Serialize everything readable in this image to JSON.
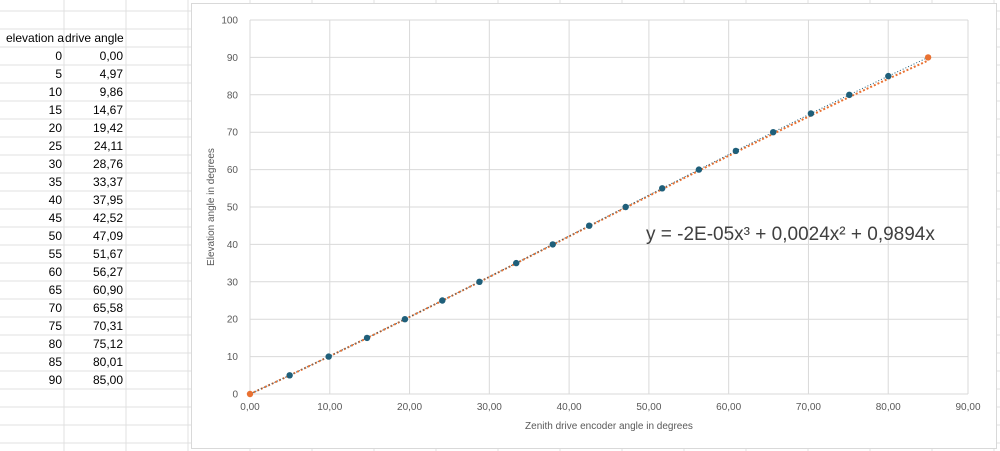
{
  "sheet": {
    "header": {
      "elevation": "elevation a",
      "drive": "drive angle"
    },
    "rows": [
      {
        "elevation": "0",
        "drive": "0,00"
      },
      {
        "elevation": "5",
        "drive": "4,97"
      },
      {
        "elevation": "10",
        "drive": "9,86"
      },
      {
        "elevation": "15",
        "drive": "14,67"
      },
      {
        "elevation": "20",
        "drive": "19,42"
      },
      {
        "elevation": "25",
        "drive": "24,11"
      },
      {
        "elevation": "30",
        "drive": "28,76"
      },
      {
        "elevation": "35",
        "drive": "33,37"
      },
      {
        "elevation": "40",
        "drive": "37,95"
      },
      {
        "elevation": "45",
        "drive": "42,52"
      },
      {
        "elevation": "50",
        "drive": "47,09"
      },
      {
        "elevation": "55",
        "drive": "51,67"
      },
      {
        "elevation": "60",
        "drive": "56,27"
      },
      {
        "elevation": "65",
        "drive": "60,90"
      },
      {
        "elevation": "70",
        "drive": "65,58"
      },
      {
        "elevation": "75",
        "drive": "70,31"
      },
      {
        "elevation": "80",
        "drive": "75,12"
      },
      {
        "elevation": "85",
        "drive": "80,01"
      },
      {
        "elevation": "90",
        "drive": "85,00"
      }
    ]
  },
  "chart_data": {
    "type": "scatter",
    "title": "",
    "xlabel": "Zenith drive encoder angle in degrees",
    "ylabel": "Elevation angle in degrees",
    "xlim": [
      0,
      90
    ],
    "ylim": [
      0,
      100
    ],
    "x_ticks": [
      "0,00",
      "10,00",
      "20,00",
      "30,00",
      "40,00",
      "50,00",
      "60,00",
      "70,00",
      "80,00",
      "90,00"
    ],
    "y_ticks": [
      "0",
      "10",
      "20",
      "30",
      "40",
      "50",
      "60",
      "70",
      "80",
      "90",
      "100"
    ],
    "grid": true,
    "series": [
      {
        "color": "#1f5f7a",
        "x": [
          4.97,
          9.86,
          14.67,
          19.42,
          24.11,
          28.76,
          33.37,
          37.95,
          42.52,
          47.09,
          51.67,
          56.27,
          60.9,
          65.58,
          70.31,
          75.12,
          80.01
        ],
        "y": [
          5,
          10,
          15,
          20,
          25,
          30,
          35,
          40,
          45,
          50,
          55,
          60,
          65,
          70,
          75,
          80,
          85
        ]
      },
      {
        "color": "#e97132",
        "x": [
          0.0,
          85.0
        ],
        "y": [
          0,
          90
        ]
      }
    ],
    "trendline": {
      "equation": "y = -2E-05x³ + 0,0024x² + 0,9894x",
      "coefficients": {
        "a3": -2e-05,
        "a2": 0.0024,
        "a1": 0.9894
      },
      "color": "#e97132"
    }
  }
}
